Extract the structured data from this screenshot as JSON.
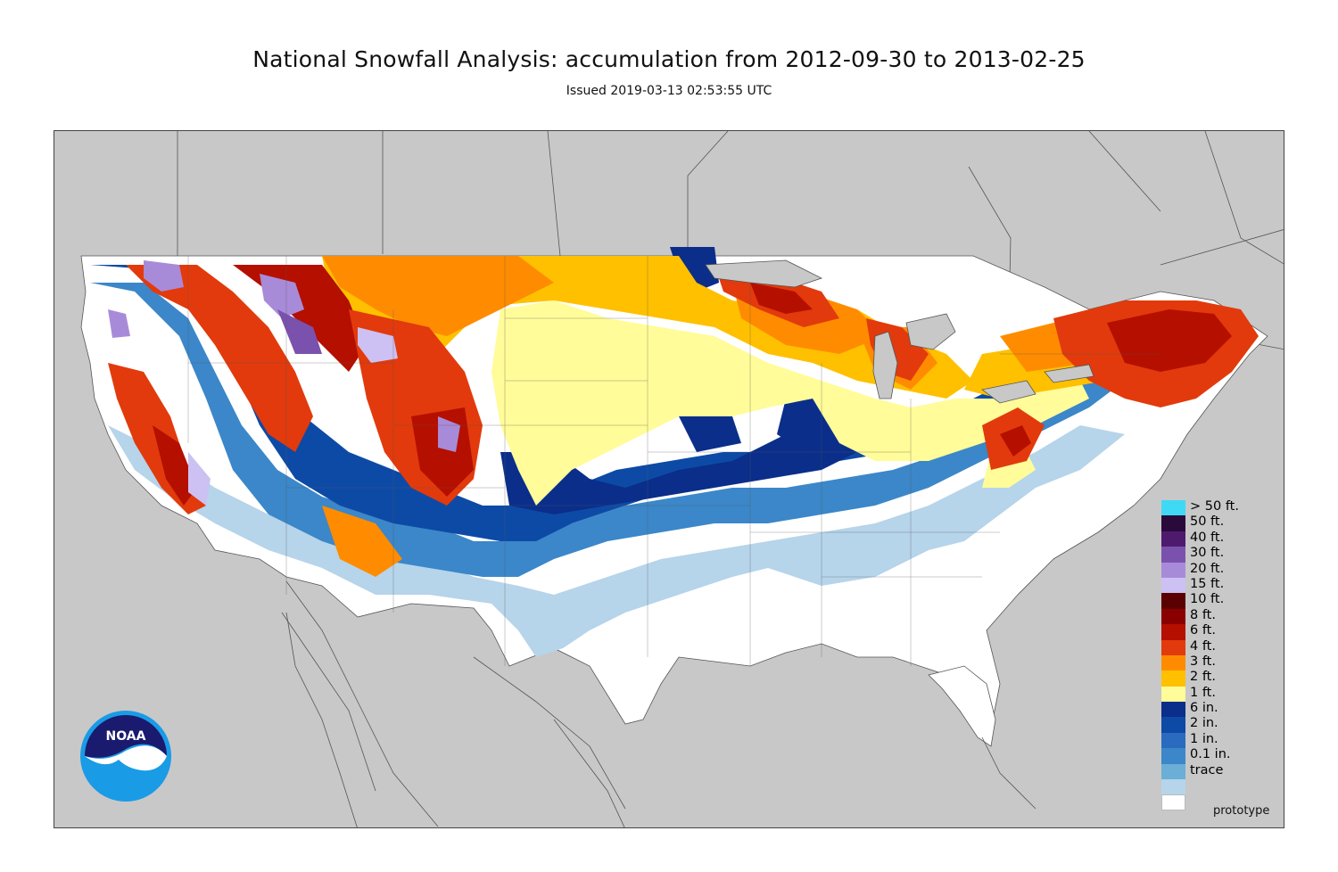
{
  "title": "National Snowfall Analysis: accumulation from 2012-09-30 to 2013-02-25",
  "subtitle": "Issued 2019-03-13 02:53:55 UTC",
  "footer_note": "prototype",
  "logo": {
    "text": "NOAA"
  },
  "colors": {
    "background_land": "#c8c8c8",
    "no_snow": "#ffffff",
    "border_lines": "#555555"
  },
  "legend": [
    {
      "label": "> 50 ft.",
      "color": "#3fd9f5"
    },
    {
      "label": "50 ft.",
      "color": "#2a0a3a"
    },
    {
      "label": "40 ft.",
      "color": "#4e1a6e"
    },
    {
      "label": "30 ft.",
      "color": "#7a52ad"
    },
    {
      "label": "20 ft.",
      "color": "#a88bd8"
    },
    {
      "label": "15 ft.",
      "color": "#ccc1f2"
    },
    {
      "label": "10 ft.",
      "color": "#5a0000"
    },
    {
      "label": "8 ft.",
      "color": "#8a0000"
    },
    {
      "label": "6 ft.",
      "color": "#b50f00"
    },
    {
      "label": "4 ft.",
      "color": "#e23a0c"
    },
    {
      "label": "3 ft.",
      "color": "#ff8c00"
    },
    {
      "label": "2 ft.",
      "color": "#ffc000"
    },
    {
      "label": "1 ft.",
      "color": "#fffc99"
    },
    {
      "label": "6 in.",
      "color": "#0a2e8a"
    },
    {
      "label": "2 in.",
      "color": "#0d4aa6"
    },
    {
      "label": "1 in.",
      "color": "#2a6bbf"
    },
    {
      "label": "0.1 in.",
      "color": "#3b87c9"
    },
    {
      "label": "trace",
      "color": "#6baed6"
    },
    {
      "label": "",
      "color": "#b6d4ea"
    },
    {
      "label": "",
      "color": "#ffffff"
    }
  ]
}
